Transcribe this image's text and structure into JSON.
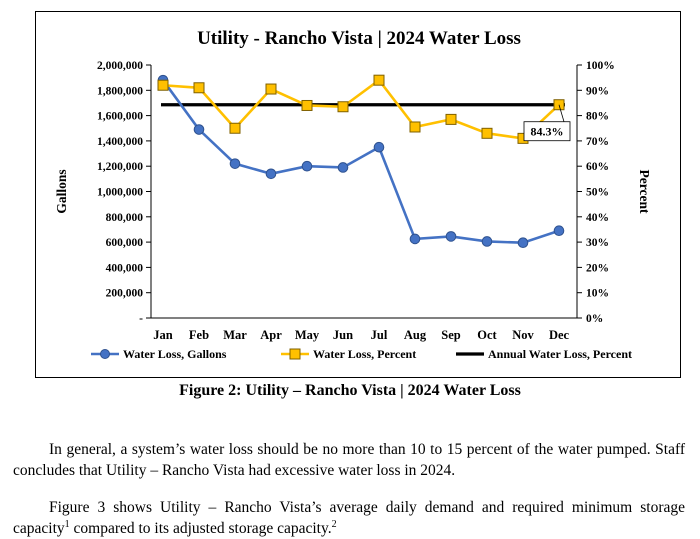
{
  "chart_data": {
    "type": "line",
    "title": "Utility - Rancho Vista | 2024 Water Loss",
    "categories": [
      "Jan",
      "Feb",
      "Mar",
      "Apr",
      "May",
      "Jun",
      "Jul",
      "Aug",
      "Sep",
      "Oct",
      "Nov",
      "Dec"
    ],
    "ylabel": "Gallons",
    "y2label": "Percent",
    "ylim": [
      0,
      2000000
    ],
    "y2lim": [
      0,
      100
    ],
    "ytick_labels": [
      "-",
      "200,000",
      "400,000",
      "600,000",
      "800,000",
      "1,000,000",
      "1,200,000",
      "1,400,000",
      "1,600,000",
      "1,800,000",
      "2,000,000"
    ],
    "y2tick_labels": [
      "0%",
      "10%",
      "20%",
      "30%",
      "40%",
      "50%",
      "60%",
      "70%",
      "80%",
      "90%",
      "100%"
    ],
    "series": [
      {
        "name": "Water Loss, Gallons",
        "axis": "left",
        "color": "#4472C4",
        "marker": "circle",
        "values": [
          1880000,
          1490000,
          1220000,
          1140000,
          1200000,
          1190000,
          1350000,
          625000,
          645000,
          605000,
          595000,
          690000
        ]
      },
      {
        "name": "Water Loss, Percent",
        "axis": "right",
        "color": "#FFC000",
        "marker": "square",
        "values": [
          92,
          91,
          75,
          90.5,
          84,
          83.5,
          94,
          75.5,
          78.5,
          73,
          71,
          84.3
        ]
      },
      {
        "name": "Annual Water Loss, Percent",
        "axis": "right",
        "color": "#000000",
        "marker": "none",
        "values": [
          84.3,
          84.3,
          84.3,
          84.3,
          84.3,
          84.3,
          84.3,
          84.3,
          84.3,
          84.3,
          84.3,
          84.3
        ]
      }
    ],
    "annotation": {
      "text": "84.3%",
      "series": "Water Loss, Percent",
      "category": "Dec"
    },
    "legend_position": "bottom",
    "grid": false
  },
  "caption": "Figure 2: Utility – Rancho Vista | 2024 Water Loss",
  "paragraph1": "In general, a system’s water loss should be no more than 10 to 15 percent of the water pumped.  Staff concludes that Utility – Rancho Vista had excessive water loss in 2024.",
  "paragraph2": {
    "text_a": "Figure 3 shows Utility – Rancho Vista’s average daily demand and required minimum storage capacity",
    "sup_a": "1",
    "text_b": " compared to its adjusted storage capacity.",
    "sup_b": "2"
  }
}
